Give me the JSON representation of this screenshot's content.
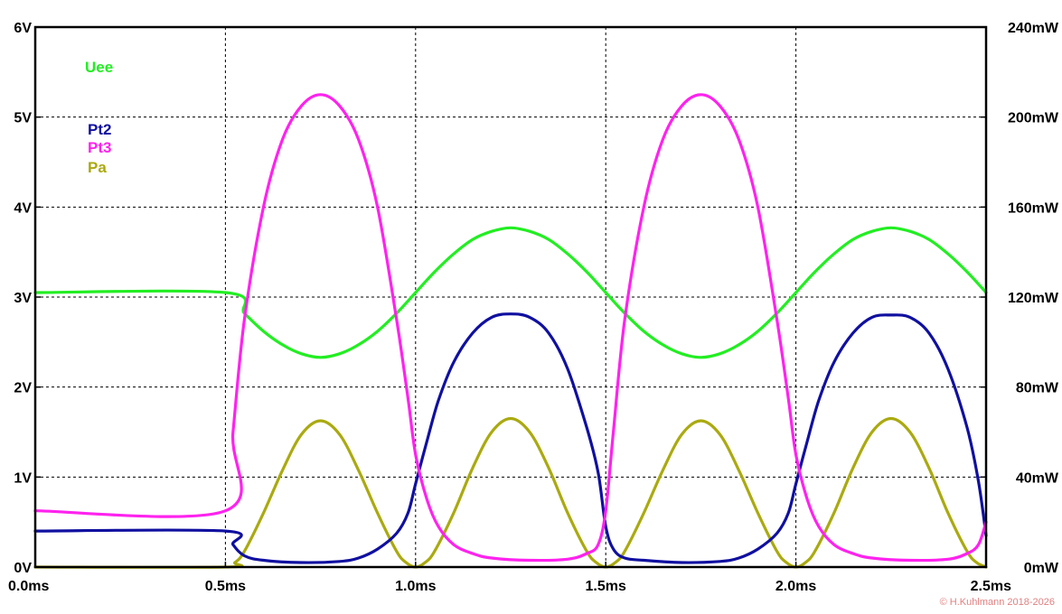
{
  "chart_data": {
    "type": "line",
    "title": "",
    "x_axis": {
      "min": 0,
      "max": 2.5,
      "unit": "ms",
      "ticks": [
        0.0,
        0.5,
        1.0,
        1.5,
        2.0,
        2.5
      ],
      "tick_labels": [
        "0.0ms",
        "0.5ms",
        "1.0ms",
        "1.5ms",
        "2.0ms",
        "2.5ms"
      ]
    },
    "y_left": {
      "min": 0,
      "max": 6,
      "unit": "V",
      "ticks": [
        0,
        1,
        2,
        3,
        4,
        5,
        6
      ],
      "tick_labels": [
        "0V",
        "1V",
        "2V",
        "3V",
        "4V",
        "5V",
        "6V"
      ]
    },
    "y_right": {
      "min": 0,
      "max": 240,
      "unit": "mW",
      "ticks": [
        0,
        40,
        80,
        120,
        160,
        200,
        240
      ],
      "tick_labels": [
        "0mW",
        "40mW",
        "80mW",
        "120mW",
        "160mW",
        "200mW",
        "240mW"
      ]
    },
    "grid": true,
    "legend_position": "top-left",
    "series": [
      {
        "name": "Uee",
        "color": "#22ee22",
        "axis": "left",
        "points": [
          [
            0,
            3.05
          ],
          [
            0.5,
            3.05
          ],
          [
            0.55,
            2.82
          ],
          [
            0.6,
            2.62
          ],
          [
            0.65,
            2.47
          ],
          [
            0.7,
            2.37
          ],
          [
            0.75,
            2.33
          ],
          [
            0.8,
            2.37
          ],
          [
            0.85,
            2.47
          ],
          [
            0.9,
            2.62
          ],
          [
            0.95,
            2.82
          ],
          [
            1.0,
            3.05
          ],
          [
            1.05,
            3.28
          ],
          [
            1.1,
            3.48
          ],
          [
            1.15,
            3.64
          ],
          [
            1.2,
            3.73
          ],
          [
            1.25,
            3.77
          ],
          [
            1.3,
            3.73
          ],
          [
            1.35,
            3.64
          ],
          [
            1.4,
            3.48
          ],
          [
            1.45,
            3.28
          ],
          [
            1.5,
            3.05
          ],
          [
            1.55,
            2.82
          ],
          [
            1.6,
            2.62
          ],
          [
            1.65,
            2.47
          ],
          [
            1.7,
            2.37
          ],
          [
            1.75,
            2.33
          ],
          [
            1.8,
            2.37
          ],
          [
            1.85,
            2.47
          ],
          [
            1.9,
            2.62
          ],
          [
            1.95,
            2.82
          ],
          [
            2.0,
            3.05
          ],
          [
            2.05,
            3.28
          ],
          [
            2.1,
            3.48
          ],
          [
            2.15,
            3.64
          ],
          [
            2.2,
            3.73
          ],
          [
            2.25,
            3.77
          ],
          [
            2.3,
            3.73
          ],
          [
            2.35,
            3.64
          ],
          [
            2.4,
            3.48
          ],
          [
            2.45,
            3.28
          ],
          [
            2.5,
            3.05
          ]
        ]
      },
      {
        "name": "Pt2",
        "color": "#1010a0",
        "axis": "right",
        "points": [
          [
            0,
            16
          ],
          [
            0.5,
            16
          ],
          [
            0.52,
            10
          ],
          [
            0.55,
            5
          ],
          [
            0.6,
            3
          ],
          [
            0.7,
            2
          ],
          [
            0.8,
            2.5
          ],
          [
            0.85,
            4
          ],
          [
            0.9,
            8
          ],
          [
            0.95,
            15
          ],
          [
            0.98,
            24
          ],
          [
            1.0,
            37
          ],
          [
            1.03,
            56
          ],
          [
            1.06,
            74
          ],
          [
            1.1,
            91
          ],
          [
            1.15,
            104
          ],
          [
            1.2,
            111
          ],
          [
            1.25,
            112.5
          ],
          [
            1.3,
            111
          ],
          [
            1.35,
            104
          ],
          [
            1.4,
            88
          ],
          [
            1.45,
            62
          ],
          [
            1.48,
            42
          ],
          [
            1.5,
            18
          ],
          [
            1.52,
            8
          ],
          [
            1.55,
            4
          ],
          [
            1.6,
            3
          ],
          [
            1.7,
            2
          ],
          [
            1.8,
            2.5
          ],
          [
            1.85,
            4
          ],
          [
            1.9,
            8
          ],
          [
            1.95,
            15
          ],
          [
            1.98,
            24
          ],
          [
            2.0,
            37
          ],
          [
            2.03,
            56
          ],
          [
            2.06,
            74
          ],
          [
            2.1,
            91
          ],
          [
            2.15,
            104
          ],
          [
            2.2,
            111
          ],
          [
            2.25,
            112
          ],
          [
            2.3,
            111
          ],
          [
            2.35,
            104
          ],
          [
            2.4,
            88
          ],
          [
            2.45,
            62
          ],
          [
            2.48,
            38
          ],
          [
            2.5,
            14
          ]
        ]
      },
      {
        "name": "Pt3",
        "color": "#ff22ee",
        "axis": "right",
        "points": [
          [
            0,
            25
          ],
          [
            0.5,
            25
          ],
          [
            0.52,
            60
          ],
          [
            0.55,
            110
          ],
          [
            0.6,
            160
          ],
          [
            0.65,
            190
          ],
          [
            0.7,
            205
          ],
          [
            0.75,
            210
          ],
          [
            0.8,
            205
          ],
          [
            0.85,
            190
          ],
          [
            0.9,
            160
          ],
          [
            0.95,
            110
          ],
          [
            0.98,
            75
          ],
          [
            1.0,
            50
          ],
          [
            1.03,
            30
          ],
          [
            1.06,
            18
          ],
          [
            1.1,
            10
          ],
          [
            1.15,
            6
          ],
          [
            1.2,
            4
          ],
          [
            1.3,
            3
          ],
          [
            1.4,
            3.5
          ],
          [
            1.45,
            6
          ],
          [
            1.48,
            10
          ],
          [
            1.5,
            25
          ],
          [
            1.52,
            60
          ],
          [
            1.55,
            110
          ],
          [
            1.6,
            160
          ],
          [
            1.65,
            190
          ],
          [
            1.7,
            205
          ],
          [
            1.75,
            210
          ],
          [
            1.8,
            205
          ],
          [
            1.85,
            190
          ],
          [
            1.9,
            160
          ],
          [
            1.95,
            110
          ],
          [
            1.98,
            75
          ],
          [
            2.0,
            50
          ],
          [
            2.03,
            30
          ],
          [
            2.06,
            18
          ],
          [
            2.1,
            10
          ],
          [
            2.15,
            6
          ],
          [
            2.2,
            4
          ],
          [
            2.3,
            3
          ],
          [
            2.4,
            3.5
          ],
          [
            2.45,
            6
          ],
          [
            2.48,
            10
          ],
          [
            2.5,
            20
          ]
        ]
      },
      {
        "name": "Pa",
        "color": "#aaaa10",
        "axis": "right",
        "points": [
          [
            0,
            0
          ],
          [
            0.5,
            0
          ],
          [
            0.525,
            2
          ],
          [
            0.55,
            7
          ],
          [
            0.6,
            24
          ],
          [
            0.65,
            43
          ],
          [
            0.7,
            59
          ],
          [
            0.75,
            65
          ],
          [
            0.8,
            59
          ],
          [
            0.85,
            43
          ],
          [
            0.9,
            24
          ],
          [
            0.95,
            7
          ],
          [
            0.975,
            2
          ],
          [
            1.0,
            0
          ],
          [
            1.025,
            2
          ],
          [
            1.05,
            7
          ],
          [
            1.1,
            24
          ],
          [
            1.15,
            44
          ],
          [
            1.2,
            60
          ],
          [
            1.25,
            66
          ],
          [
            1.3,
            60
          ],
          [
            1.35,
            44
          ],
          [
            1.4,
            24
          ],
          [
            1.45,
            7
          ],
          [
            1.475,
            2
          ],
          [
            1.5,
            0
          ],
          [
            1.525,
            2
          ],
          [
            1.55,
            7
          ],
          [
            1.6,
            24
          ],
          [
            1.65,
            43
          ],
          [
            1.7,
            59
          ],
          [
            1.75,
            65
          ],
          [
            1.8,
            59
          ],
          [
            1.85,
            43
          ],
          [
            1.9,
            24
          ],
          [
            1.95,
            7
          ],
          [
            1.975,
            2
          ],
          [
            2.0,
            0
          ],
          [
            2.025,
            2
          ],
          [
            2.05,
            7
          ],
          [
            2.1,
            24
          ],
          [
            2.15,
            44
          ],
          [
            2.2,
            60
          ],
          [
            2.25,
            66
          ],
          [
            2.3,
            60
          ],
          [
            2.35,
            44
          ],
          [
            2.4,
            24
          ],
          [
            2.45,
            7
          ],
          [
            2.475,
            2
          ],
          [
            2.5,
            0
          ]
        ]
      }
    ],
    "legend_groups": [
      [
        "Uee"
      ],
      [
        "Pt2",
        "Pt3",
        "Pa"
      ]
    ]
  },
  "copyright": "© H.Kuhlmann 2018-2026"
}
